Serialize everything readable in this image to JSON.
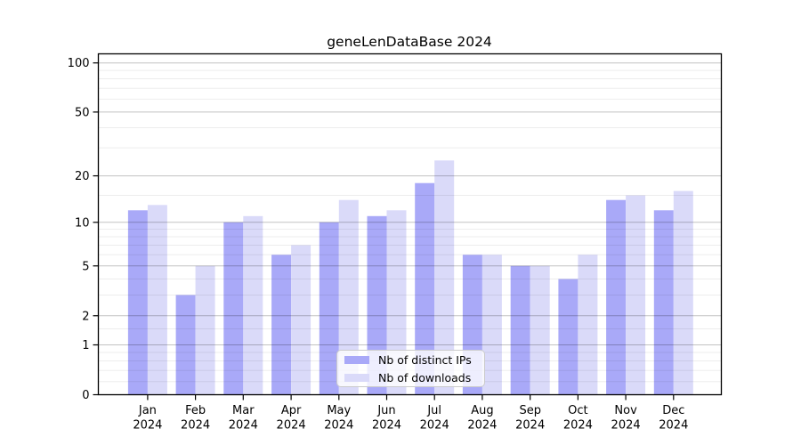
{
  "title": "geneLenDataBase 2024",
  "chart_data": {
    "type": "bar",
    "title": "geneLenDataBase 2024",
    "x_ticks": [
      {
        "month": "Jan",
        "year": "2024"
      },
      {
        "month": "Feb",
        "year": "2024"
      },
      {
        "month": "Mar",
        "year": "2024"
      },
      {
        "month": "Apr",
        "year": "2024"
      },
      {
        "month": "May",
        "year": "2024"
      },
      {
        "month": "Jun",
        "year": "2024"
      },
      {
        "month": "Jul",
        "year": "2024"
      },
      {
        "month": "Aug",
        "year": "2024"
      },
      {
        "month": "Sep",
        "year": "2024"
      },
      {
        "month": "Oct",
        "year": "2024"
      },
      {
        "month": "Nov",
        "year": "2024"
      },
      {
        "month": "Dec",
        "year": "2024"
      }
    ],
    "series": [
      {
        "name": "Nb of distinct IPs",
        "color": "#a9a9f8",
        "values": [
          12,
          3,
          10,
          6,
          10,
          11,
          18,
          6,
          5,
          4,
          14,
          12
        ]
      },
      {
        "name": "Nb of downloads",
        "color": "#dadaf9",
        "values": [
          13,
          5,
          11,
          7,
          14,
          12,
          25,
          6,
          5,
          6,
          15,
          16
        ]
      }
    ],
    "y_axis": {
      "scale": "log10(value+1)",
      "range": [
        0,
        114
      ],
      "major_ticks": [
        100,
        50,
        20,
        10,
        5,
        2,
        1,
        0
      ],
      "minor_ticks": [
        0.2,
        0.4,
        0.6,
        0.8,
        1.5,
        3,
        4,
        6,
        7,
        8,
        9,
        15,
        30,
        40,
        60,
        70,
        80,
        90
      ]
    },
    "grid": {
      "major_color": "rgba(0,0,0,0.24)",
      "minor_color": "rgba(0,0,0,0.07)",
      "on_top_of_bars": true
    },
    "legend": {
      "position": "lower center"
    },
    "background": "#ffffff"
  }
}
